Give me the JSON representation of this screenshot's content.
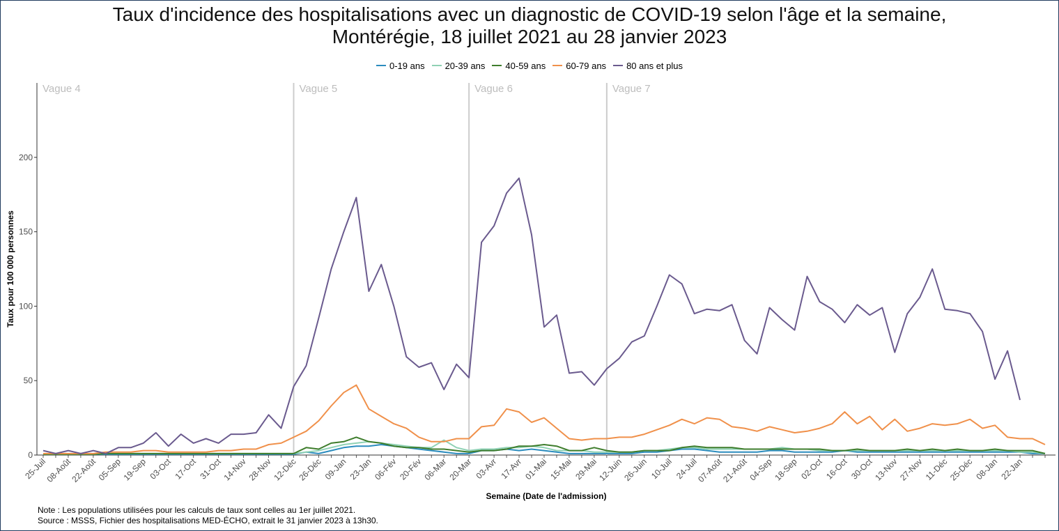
{
  "chart_data": {
    "type": "line",
    "title_line1": "Taux d'incidence des hospitalisations avec un diagnostic de COVID-19 selon l'âge et la semaine,",
    "title_line2": "Montérégie, 18 juillet 2021 au 28 janvier 2023",
    "xlabel": "Semaine (Date de l'admission)",
    "ylabel": "Taux pour 100 000 personnes",
    "ylim": [
      0,
      250
    ],
    "y_ticks": [
      0,
      50,
      100,
      150,
      200
    ],
    "grid": false,
    "legend_position": "top",
    "x_tick_labels": [
      "25-Juil",
      "08-Août",
      "22-Août",
      "05-Sep",
      "19-Sep",
      "03-Oct",
      "17-Oct",
      "31-Oct",
      "14-Nov",
      "28-Nov",
      "12-Déc",
      "26-Déc",
      "09-Jan",
      "23-Jan",
      "06-Fév",
      "20-Fév",
      "06-Mar",
      "20-Mar",
      "03-Avr",
      "17-Avr",
      "01-Mai",
      "15-Mai",
      "29-Mai",
      "12-Juin",
      "26-Juin",
      "10-Juil",
      "24-Juil",
      "07-Août",
      "21-Août",
      "04-Sep",
      "18-Sep",
      "02-Oct",
      "16-Oct",
      "30-Oct",
      "13-Nov",
      "27-Nov",
      "11-Déc",
      "25-Déc",
      "08-Jan",
      "22-Jan"
    ],
    "waves": [
      {
        "label": "Vague 4",
        "start_week": 0,
        "line": false
      },
      {
        "label": "Vague 5",
        "start_week": 20,
        "line": true
      },
      {
        "label": "Vague 6",
        "start_week": 34,
        "line": true
      },
      {
        "label": "Vague 7",
        "start_week": 45,
        "line": true
      }
    ],
    "series": [
      {
        "name": "0-19 ans",
        "color": "#2b8cbe",
        "values": [
          0.5,
          0.5,
          0.5,
          0.5,
          0.5,
          0.5,
          0.5,
          0.5,
          0.5,
          0.5,
          0.5,
          0.5,
          0.5,
          0.5,
          0.5,
          0.5,
          0.5,
          0.5,
          0.5,
          0.5,
          0.5,
          2,
          1,
          3,
          5,
          6,
          6,
          7,
          6,
          5,
          4,
          3,
          2,
          1,
          1,
          3,
          3,
          4,
          3,
          4,
          3,
          2,
          1,
          1,
          1,
          1,
          1,
          1,
          2,
          2,
          3,
          4,
          4,
          3,
          2,
          2,
          2,
          2,
          3,
          3,
          2,
          2,
          2,
          2,
          3,
          2,
          2,
          2,
          2,
          2,
          2,
          2,
          2,
          2,
          2,
          2,
          2,
          2,
          2,
          1,
          1
        ]
      },
      {
        "name": "20-39 ans",
        "color": "#8fd1b4",
        "values": [
          0.5,
          0.5,
          0.5,
          0.5,
          0.5,
          1,
          1,
          1,
          1,
          1,
          1,
          1,
          1,
          1,
          1,
          1,
          1,
          1,
          1,
          1,
          1,
          2,
          3,
          5,
          7,
          8,
          9,
          8,
          7,
          6,
          5,
          5,
          10,
          5,
          3,
          4,
          4,
          5,
          5,
          6,
          5,
          3,
          3,
          3,
          2,
          2,
          2,
          2,
          3,
          3,
          4,
          5,
          5,
          4,
          4,
          4,
          4,
          4,
          4,
          5,
          4,
          4,
          3,
          3,
          3,
          3,
          3,
          3,
          3,
          3,
          3,
          3,
          3,
          3,
          3,
          3,
          3,
          3,
          2,
          2,
          1
        ]
      },
      {
        "name": "40-59 ans",
        "color": "#3e7d2c",
        "values": [
          0.5,
          0.5,
          0.5,
          0.5,
          0.5,
          1,
          1,
          1,
          1,
          1,
          1,
          1,
          1,
          1,
          1,
          1,
          1,
          1,
          1,
          1,
          1,
          5,
          4,
          8,
          9,
          12,
          9,
          8,
          6,
          5,
          5,
          4,
          4,
          3,
          2,
          3,
          3,
          4,
          6,
          6,
          7,
          6,
          3,
          3,
          5,
          3,
          2,
          2,
          3,
          3,
          3,
          5,
          6,
          5,
          5,
          5,
          4,
          4,
          4,
          4,
          4,
          4,
          4,
          3,
          3,
          4,
          3,
          3,
          3,
          4,
          3,
          4,
          3,
          4,
          3,
          3,
          4,
          3,
          3,
          3,
          1
        ]
      },
      {
        "name": "60-79 ans",
        "color": "#f0904a",
        "values": [
          1,
          1,
          1,
          1,
          1,
          2,
          2,
          2,
          3,
          3,
          2,
          2,
          2,
          2,
          3,
          3,
          4,
          4,
          7,
          8,
          12,
          16,
          23,
          33,
          42,
          47,
          31,
          26,
          21,
          18,
          12,
          9,
          9,
          11,
          11,
          19,
          20,
          31,
          29,
          22,
          25,
          18,
          11,
          10,
          11,
          11,
          12,
          12,
          14,
          17,
          20,
          24,
          21,
          25,
          24,
          19,
          18,
          16,
          19,
          17,
          15,
          16,
          18,
          21,
          29,
          21,
          26,
          17,
          24,
          16,
          18,
          21,
          20,
          21,
          24,
          18,
          20,
          12,
          11,
          11,
          7
        ]
      },
      {
        "name": "80 ans et plus",
        "color": "#6a5a8e",
        "values": [
          3,
          1,
          3,
          1,
          3,
          1,
          5,
          5,
          8,
          15,
          6,
          14,
          8,
          11,
          8,
          14,
          14,
          15,
          27,
          18,
          46,
          60,
          92,
          125,
          150,
          173,
          110,
          128,
          100,
          66,
          59,
          62,
          44,
          61,
          52,
          143,
          154,
          176,
          186,
          148,
          86,
          94,
          55,
          56,
          47,
          58,
          65,
          76,
          80,
          100,
          121,
          115,
          95,
          98,
          97,
          101,
          77,
          68,
          99,
          91,
          84,
          120,
          103,
          98,
          89,
          101,
          94,
          99,
          69,
          95,
          106,
          125,
          98,
          97,
          95,
          83,
          51,
          70,
          37
        ]
      }
    ]
  },
  "notes": {
    "line1": "Note : Les populations utilisées pour les calculs de taux sont celles au 1er juillet 2021.",
    "line2": "Source : MSSS, Fichier des hospitalisations MED-ÉCHO, extrait le 31 janvier 2023 à 13h30."
  }
}
